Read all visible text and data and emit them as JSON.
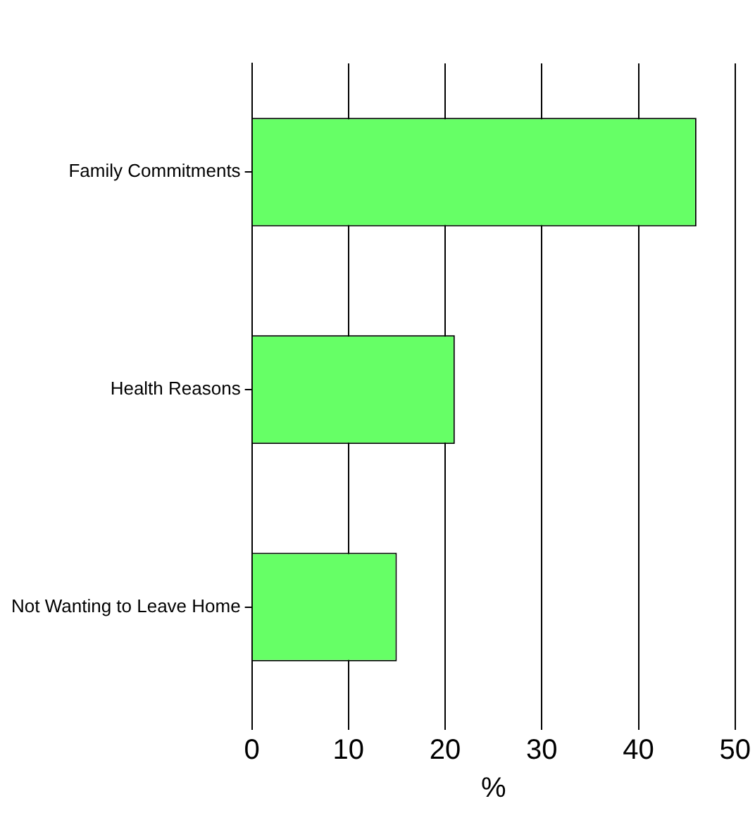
{
  "chart_data": {
    "type": "bar",
    "orientation": "horizontal",
    "categories": [
      "Family Commitments",
      "Health Reasons",
      "Not Wanting to Leave Home"
    ],
    "values": [
      46,
      21,
      15
    ],
    "color": "#66ff66",
    "xlabel": "%",
    "xlim": [
      0,
      50
    ],
    "xticks": [
      0,
      10,
      20,
      30,
      40,
      50
    ],
    "grid": "x",
    "legend": false
  }
}
